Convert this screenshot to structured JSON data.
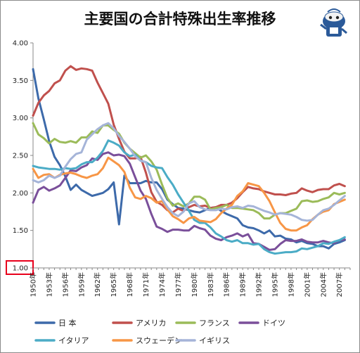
{
  "chart_data": {
    "type": "line",
    "title": "主要国の合計特殊出生率推移",
    "xlabel": "",
    "ylabel": "",
    "ylim": [
      1.0,
      4.0
    ],
    "yticks": [
      "1.00",
      "1.50",
      "2.00",
      "2.50",
      "3.00",
      "3.50",
      "4.00"
    ],
    "xlim": [
      1950,
      2009
    ],
    "xticks": [
      "1950年",
      "1953年",
      "1956年",
      "1959年",
      "1962年",
      "1965年",
      "1968年",
      "1971年",
      "1974年",
      "1977年",
      "1980年",
      "1983年",
      "1986年",
      "1989年",
      "1992年",
      "1995年",
      "1998年",
      "2001年",
      "2004年",
      "2007年"
    ],
    "grid": false,
    "legend_position": "bottom",
    "highlight_tick": "1.00",
    "series": [
      {
        "name": "日 本",
        "color": "#3d6aaa",
        "x": [
          1950,
          1951,
          1952,
          1953,
          1954,
          1955,
          1956,
          1957,
          1958,
          1959,
          1960,
          1961,
          1962,
          1963,
          1964,
          1965,
          1966,
          1967,
          1968,
          1969,
          1970,
          1971,
          1972,
          1973,
          1974,
          1975,
          1976,
          1977,
          1978,
          1979,
          1980,
          1981,
          1982,
          1983,
          1984,
          1985,
          1986,
          1987,
          1988,
          1989,
          1990,
          1991,
          1992,
          1993,
          1994,
          1995,
          1996,
          1997,
          1998,
          1999,
          2000,
          2001,
          2002,
          2003,
          2004,
          2005,
          2006,
          2007,
          2008
        ],
        "values": [
          3.65,
          3.26,
          2.98,
          2.69,
          2.48,
          2.37,
          2.22,
          2.04,
          2.11,
          2.04,
          2.0,
          1.96,
          1.98,
          2.0,
          2.05,
          2.14,
          1.58,
          2.23,
          2.13,
          2.13,
          2.13,
          2.16,
          2.14,
          2.14,
          2.05,
          1.91,
          1.85,
          1.8,
          1.79,
          1.77,
          1.75,
          1.74,
          1.77,
          1.8,
          1.81,
          1.76,
          1.72,
          1.69,
          1.66,
          1.57,
          1.54,
          1.53,
          1.5,
          1.46,
          1.5,
          1.42,
          1.43,
          1.39,
          1.38,
          1.34,
          1.36,
          1.33,
          1.32,
          1.29,
          1.29,
          1.26,
          1.32,
          1.34,
          1.37
        ]
      },
      {
        "name": "アメリカ",
        "color": "#c0504d",
        "x": [
          1950,
          1951,
          1952,
          1953,
          1954,
          1955,
          1956,
          1957,
          1958,
          1959,
          1960,
          1961,
          1962,
          1963,
          1964,
          1965,
          1966,
          1967,
          1968,
          1969,
          1970,
          1971,
          1972,
          1973,
          1974,
          1975,
          1976,
          1977,
          1978,
          1979,
          1980,
          1981,
          1982,
          1983,
          1984,
          1985,
          1986,
          1987,
          1988,
          1989,
          1990,
          1991,
          1992,
          1993,
          1994,
          1995,
          1996,
          1997,
          1998,
          1999,
          2000,
          2001,
          2002,
          2003,
          2004,
          2005,
          2006,
          2007,
          2008
        ],
        "values": [
          3.03,
          3.2,
          3.3,
          3.36,
          3.46,
          3.5,
          3.63,
          3.69,
          3.64,
          3.66,
          3.65,
          3.63,
          3.47,
          3.33,
          3.19,
          2.91,
          2.72,
          2.55,
          2.46,
          2.46,
          2.48,
          2.27,
          2.01,
          1.88,
          1.84,
          1.77,
          1.74,
          1.79,
          1.76,
          1.81,
          1.84,
          1.82,
          1.83,
          1.8,
          1.81,
          1.84,
          1.84,
          1.87,
          1.93,
          2.01,
          2.08,
          2.06,
          2.05,
          2.02,
          2.0,
          1.98,
          1.98,
          1.97,
          1.99,
          2.0,
          2.06,
          2.03,
          2.01,
          2.04,
          2.05,
          2.05,
          2.1,
          2.12,
          2.09
        ]
      },
      {
        "name": "フランス",
        "color": "#9bbb59",
        "x": [
          1950,
          1951,
          1952,
          1953,
          1954,
          1955,
          1956,
          1957,
          1958,
          1959,
          1960,
          1961,
          1962,
          1963,
          1964,
          1965,
          1966,
          1967,
          1968,
          1969,
          1970,
          1971,
          1972,
          1973,
          1974,
          1975,
          1976,
          1977,
          1978,
          1979,
          1980,
          1981,
          1982,
          1983,
          1984,
          1985,
          1986,
          1987,
          1988,
          1989,
          1990,
          1991,
          1992,
          1993,
          1994,
          1995,
          1996,
          1997,
          1998,
          1999,
          2000,
          2001,
          2002,
          2003,
          2004,
          2005,
          2006,
          2007,
          2008
        ],
        "values": [
          2.93,
          2.78,
          2.73,
          2.66,
          2.72,
          2.68,
          2.67,
          2.69,
          2.67,
          2.74,
          2.74,
          2.82,
          2.8,
          2.9,
          2.9,
          2.84,
          2.79,
          2.67,
          2.59,
          2.53,
          2.47,
          2.5,
          2.42,
          2.31,
          2.11,
          1.93,
          1.83,
          1.86,
          1.82,
          1.86,
          1.95,
          1.95,
          1.91,
          1.78,
          1.8,
          1.81,
          1.84,
          1.8,
          1.8,
          1.79,
          1.78,
          1.77,
          1.73,
          1.66,
          1.66,
          1.71,
          1.73,
          1.73,
          1.76,
          1.79,
          1.89,
          1.9,
          1.88,
          1.89,
          1.92,
          1.94,
          2.0,
          1.98,
          2.0
        ]
      },
      {
        "name": "ドイツ",
        "color": "#7a4f9a",
        "x": [
          1950,
          1951,
          1952,
          1953,
          1954,
          1955,
          1956,
          1957,
          1958,
          1959,
          1960,
          1961,
          1962,
          1963,
          1964,
          1965,
          1966,
          1967,
          1968,
          1969,
          1970,
          1971,
          1972,
          1973,
          1974,
          1975,
          1976,
          1977,
          1978,
          1979,
          1980,
          1981,
          1982,
          1983,
          1984,
          1985,
          1986,
          1987,
          1988,
          1989,
          1990,
          1991,
          1992,
          1993,
          1994,
          1995,
          1996,
          1997,
          1998,
          1999,
          2000,
          2001,
          2002,
          2003,
          2004,
          2005,
          2006,
          2007,
          2008
        ],
        "values": [
          1.87,
          2.04,
          2.08,
          2.03,
          2.06,
          2.1,
          2.2,
          2.3,
          2.29,
          2.34,
          2.37,
          2.46,
          2.44,
          2.52,
          2.54,
          2.5,
          2.51,
          2.49,
          2.39,
          2.21,
          2.03,
          1.92,
          1.72,
          1.55,
          1.52,
          1.48,
          1.51,
          1.51,
          1.5,
          1.5,
          1.56,
          1.53,
          1.51,
          1.43,
          1.39,
          1.37,
          1.41,
          1.43,
          1.46,
          1.42,
          1.45,
          1.33,
          1.32,
          1.28,
          1.24,
          1.25,
          1.32,
          1.37,
          1.36,
          1.36,
          1.38,
          1.35,
          1.34,
          1.34,
          1.36,
          1.34,
          1.33,
          1.37,
          1.38
        ]
      },
      {
        "name": "イタリア",
        "color": "#4bacc6",
        "x": [
          1950,
          1951,
          1952,
          1953,
          1954,
          1955,
          1956,
          1957,
          1958,
          1959,
          1960,
          1961,
          1962,
          1963,
          1964,
          1965,
          1966,
          1967,
          1968,
          1969,
          1970,
          1971,
          1972,
          1973,
          1974,
          1975,
          1976,
          1977,
          1978,
          1979,
          1980,
          1981,
          1982,
          1983,
          1984,
          1985,
          1986,
          1987,
          1988,
          1989,
          1990,
          1991,
          1992,
          1993,
          1994,
          1995,
          1996,
          1997,
          1998,
          1999,
          2000,
          2001,
          2002,
          2003,
          2004,
          2005,
          2006,
          2007,
          2008
        ],
        "values": [
          2.36,
          2.34,
          2.33,
          2.32,
          2.32,
          2.31,
          2.33,
          2.32,
          2.33,
          2.38,
          2.41,
          2.41,
          2.47,
          2.56,
          2.7,
          2.67,
          2.63,
          2.54,
          2.49,
          2.51,
          2.43,
          2.41,
          2.36,
          2.34,
          2.33,
          2.21,
          2.11,
          1.98,
          1.87,
          1.76,
          1.64,
          1.6,
          1.6,
          1.54,
          1.46,
          1.42,
          1.37,
          1.35,
          1.37,
          1.33,
          1.33,
          1.31,
          1.32,
          1.25,
          1.21,
          1.19,
          1.2,
          1.21,
          1.21,
          1.22,
          1.26,
          1.25,
          1.27,
          1.29,
          1.33,
          1.32,
          1.35,
          1.37,
          1.41
        ]
      },
      {
        "name": "スウェーデン",
        "color": "#f79646",
        "x": [
          1950,
          1951,
          1952,
          1953,
          1954,
          1955,
          1956,
          1957,
          1958,
          1959,
          1960,
          1961,
          1962,
          1963,
          1964,
          1965,
          1966,
          1967,
          1968,
          1969,
          1970,
          1971,
          1972,
          1973,
          1974,
          1975,
          1976,
          1977,
          1978,
          1979,
          1980,
          1981,
          1982,
          1983,
          1984,
          1985,
          1986,
          1987,
          1988,
          1989,
          1990,
          1991,
          1992,
          1993,
          1994,
          1995,
          1996,
          1997,
          1998,
          1999,
          2000,
          2001,
          2002,
          2003,
          2004,
          2005,
          2006,
          2007,
          2008
        ],
        "values": [
          2.32,
          2.2,
          2.24,
          2.25,
          2.2,
          2.24,
          2.26,
          2.27,
          2.25,
          2.22,
          2.2,
          2.23,
          2.25,
          2.33,
          2.47,
          2.42,
          2.37,
          2.28,
          2.07,
          1.94,
          1.92,
          1.96,
          1.93,
          1.87,
          1.89,
          1.78,
          1.69,
          1.65,
          1.6,
          1.66,
          1.68,
          1.63,
          1.62,
          1.61,
          1.65,
          1.73,
          1.79,
          1.84,
          1.96,
          2.02,
          2.13,
          2.11,
          2.09,
          2.0,
          1.89,
          1.74,
          1.6,
          1.52,
          1.5,
          1.5,
          1.54,
          1.57,
          1.65,
          1.71,
          1.75,
          1.77,
          1.85,
          1.88,
          1.91
        ]
      },
      {
        "name": "イギリス",
        "color": "#a5b4d8",
        "x": [
          1950,
          1951,
          1952,
          1953,
          1954,
          1955,
          1956,
          1957,
          1958,
          1959,
          1960,
          1961,
          1962,
          1963,
          1964,
          1965,
          1966,
          1967,
          1968,
          1969,
          1970,
          1971,
          1972,
          1973,
          1974,
          1975,
          1976,
          1977,
          1978,
          1979,
          1980,
          1981,
          1982,
          1983,
          1984,
          1985,
          1986,
          1987,
          1988,
          1989,
          1990,
          1991,
          1992,
          1993,
          1994,
          1995,
          1996,
          1997,
          1998,
          1999,
          2000,
          2001,
          2002,
          2003,
          2004,
          2005,
          2006,
          2007,
          2008
        ],
        "values": [
          2.17,
          2.14,
          2.17,
          2.23,
          2.2,
          2.23,
          2.35,
          2.45,
          2.52,
          2.54,
          2.71,
          2.78,
          2.85,
          2.9,
          2.93,
          2.86,
          2.76,
          2.68,
          2.59,
          2.49,
          2.43,
          2.41,
          2.2,
          2.04,
          1.92,
          1.81,
          1.73,
          1.69,
          1.75,
          1.86,
          1.89,
          1.81,
          1.78,
          1.77,
          1.77,
          1.79,
          1.78,
          1.81,
          1.82,
          1.8,
          1.83,
          1.82,
          1.79,
          1.76,
          1.74,
          1.71,
          1.73,
          1.72,
          1.71,
          1.68,
          1.64,
          1.63,
          1.64,
          1.71,
          1.77,
          1.79,
          1.84,
          1.9,
          1.96
        ]
      }
    ]
  }
}
